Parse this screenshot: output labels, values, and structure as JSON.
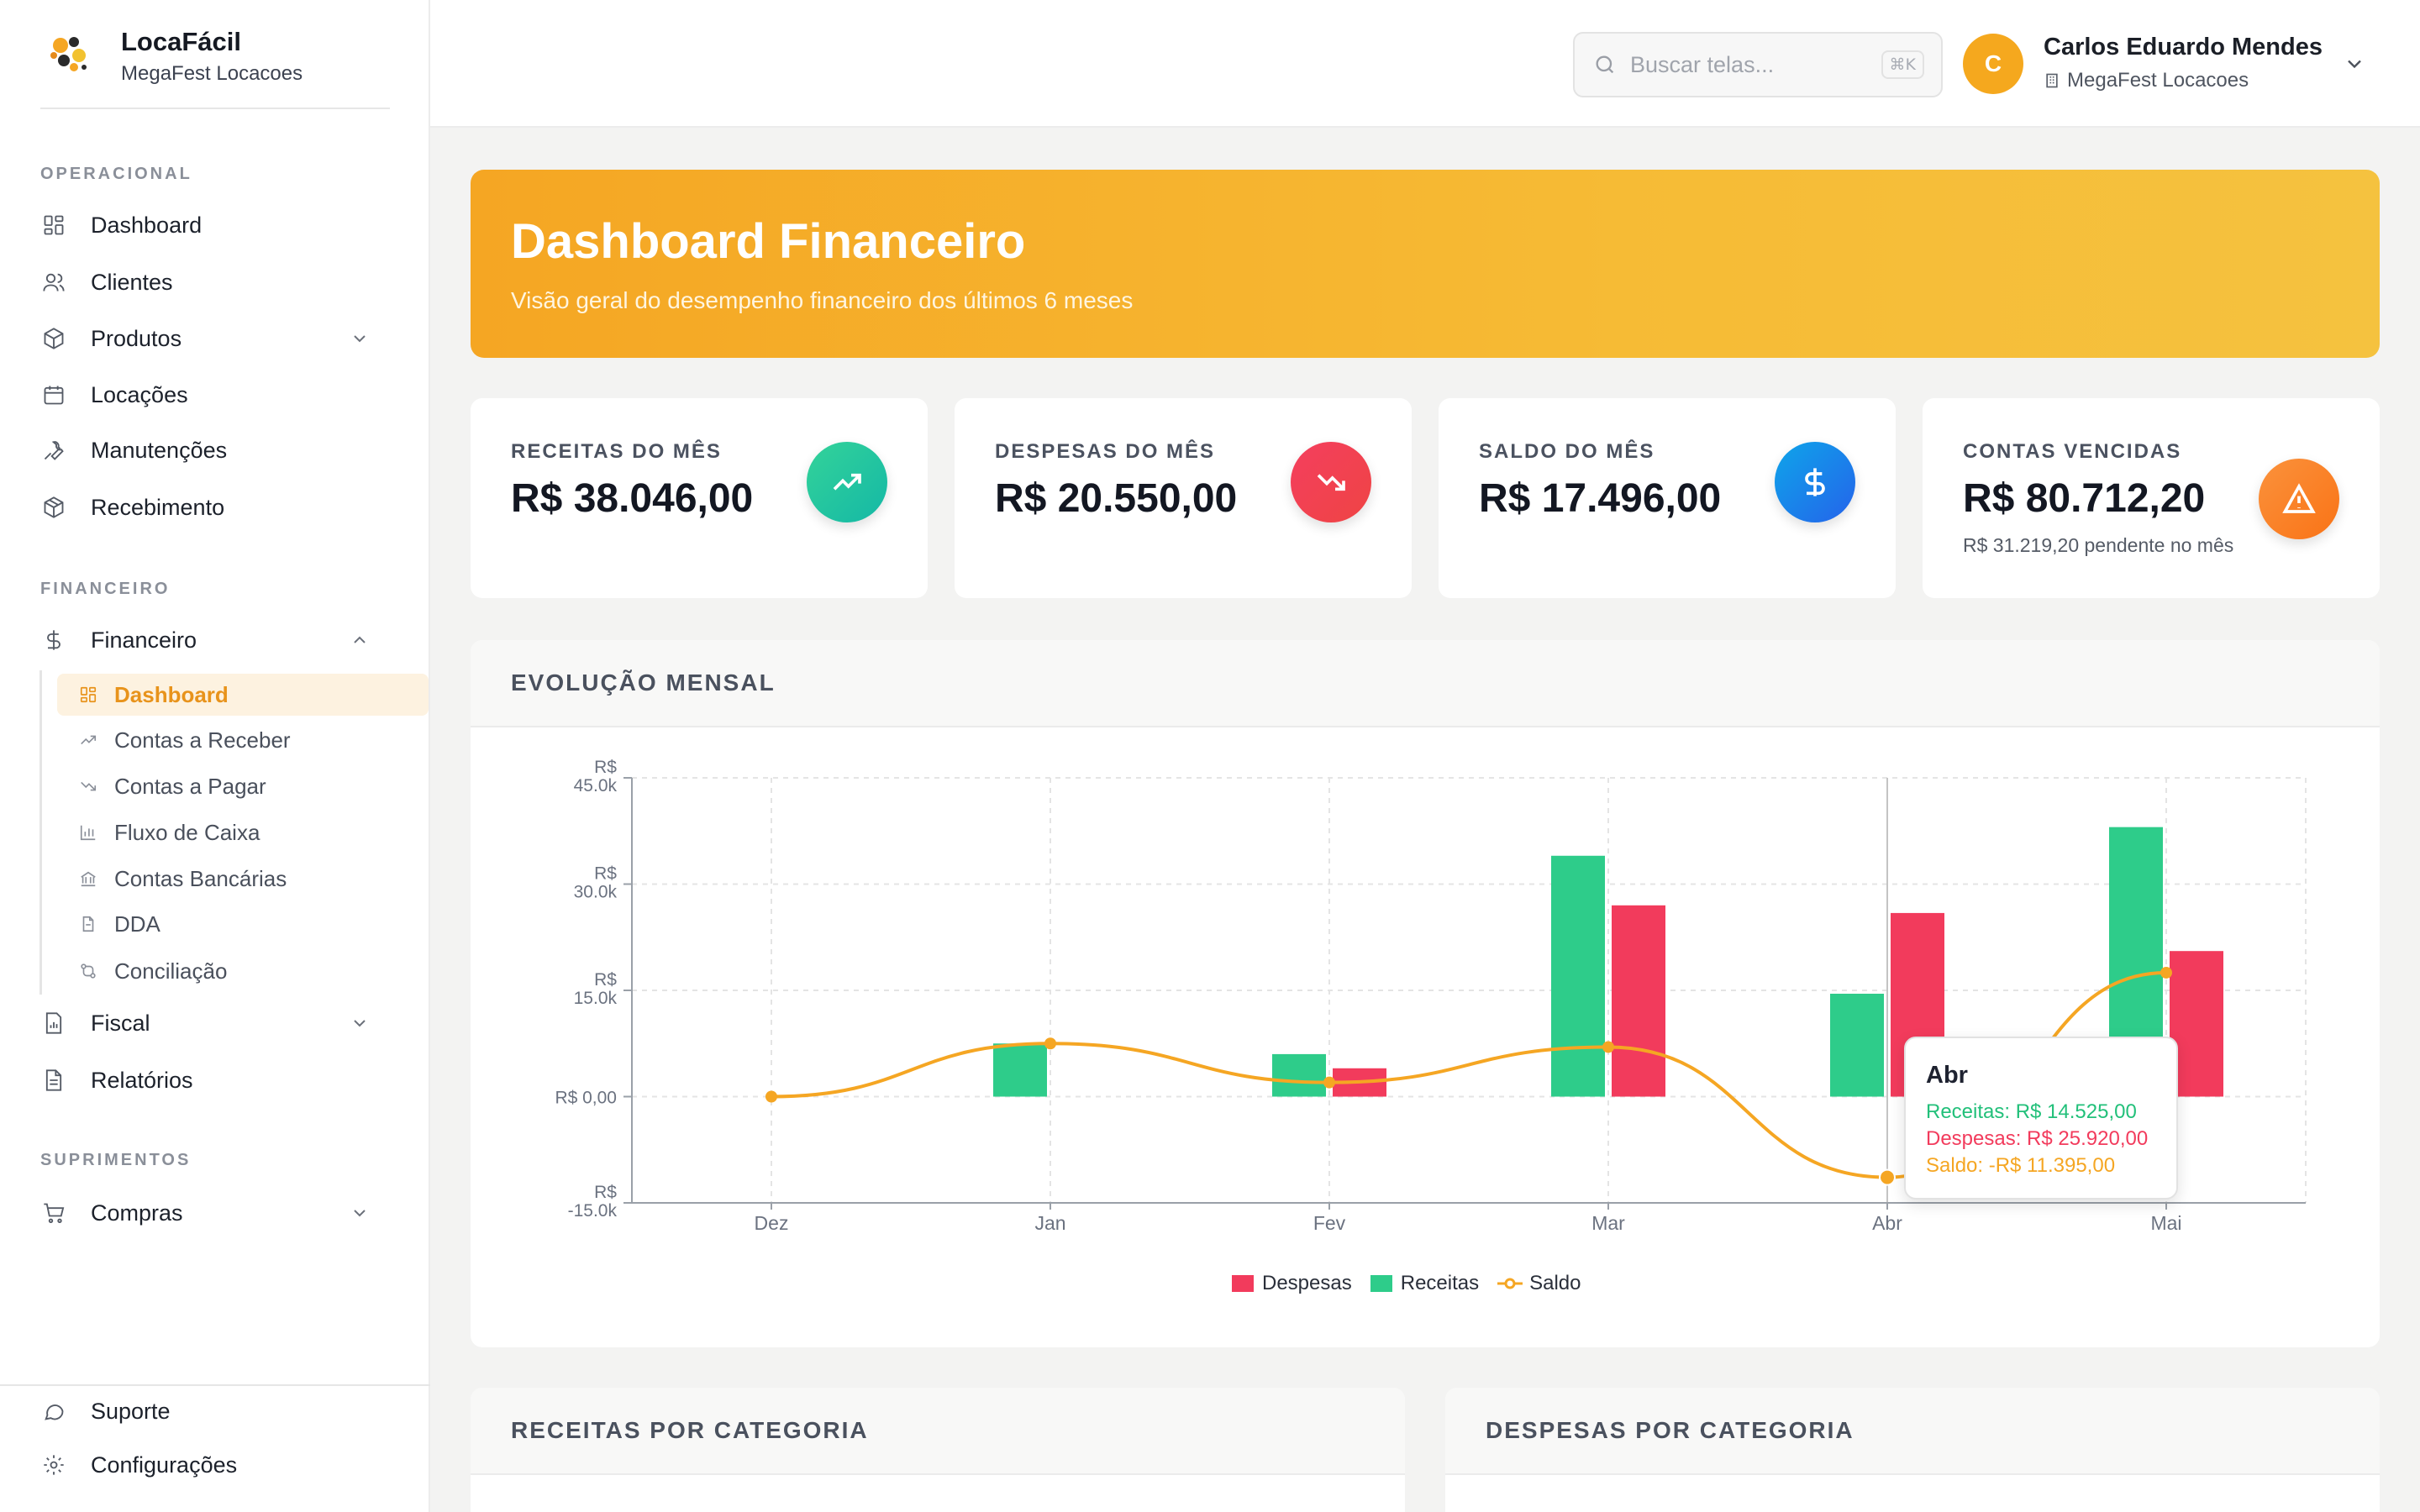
{
  "brand": {
    "name": "LocaFácil",
    "subtitle": "MegaFest Locacoes"
  },
  "sidebar": {
    "sections": {
      "operacional": "OPERACIONAL",
      "financeiro": "FINANCEIRO",
      "suprimentos": "SUPRIMENTOS"
    },
    "operacional": [
      {
        "label": "Dashboard",
        "icon": "grid-icon"
      },
      {
        "label": "Clientes",
        "icon": "users-icon"
      },
      {
        "label": "Produtos",
        "icon": "box-icon"
      },
      {
        "label": "Locações",
        "icon": "calendar-icon"
      },
      {
        "label": "Manutenções",
        "icon": "wrench-icon"
      },
      {
        "label": "Recebimento",
        "icon": "package-icon"
      }
    ],
    "financeiro": {
      "label": "Financeiro",
      "icon": "dollar-icon"
    },
    "financeiro_sub": [
      {
        "label": "Dashboard",
        "icon": "grid-icon"
      },
      {
        "label": "Contas a Receber",
        "icon": "trend-up-icon"
      },
      {
        "label": "Contas a Pagar",
        "icon": "trend-down-icon"
      },
      {
        "label": "Fluxo de Caixa",
        "icon": "bar-chart-icon"
      },
      {
        "label": "Contas Bancárias",
        "icon": "bank-icon"
      },
      {
        "label": "DDA",
        "icon": "file-icon"
      },
      {
        "label": "Conciliação",
        "icon": "git-compare-icon"
      }
    ],
    "fiscal": {
      "label": "Fiscal",
      "icon": "receipt-icon"
    },
    "relatorios": {
      "label": "Relatórios",
      "icon": "document-icon"
    },
    "compras": {
      "label": "Compras",
      "icon": "cart-icon"
    },
    "footer": [
      {
        "label": "Suporte",
        "icon": "message-icon"
      },
      {
        "label": "Configurações",
        "icon": "gear-icon"
      }
    ]
  },
  "header": {
    "search_placeholder": "Buscar telas...",
    "search_shortcut": "⌘K",
    "user_initial": "C",
    "user_name": "Carlos Eduardo Mendes",
    "user_org": "MegaFest Locacoes"
  },
  "banner": {
    "title": "Dashboard Financeiro",
    "subtitle": "Visão geral do desempenho financeiro dos últimos 6 meses"
  },
  "kpis": [
    {
      "label": "RECEITAS DO MÊS",
      "value": "R$ 38.046,00",
      "note": "",
      "color": "#2ecc8f"
    },
    {
      "label": "DESPESAS DO MÊS",
      "value": "R$ 20.550,00",
      "note": "",
      "color": "#f23b5c"
    },
    {
      "label": "SALDO DO MÊS",
      "value": "R$ 17.496,00",
      "note": "",
      "color": "#1597e5"
    },
    {
      "label": "CONTAS VENCIDAS",
      "value": "R$ 80.712,20",
      "note": "R$ 31.219,20 pendente no mês",
      "color": "#f57a2a"
    }
  ],
  "chart_card": {
    "title": "EVOLUÇÃO MENSAL"
  },
  "chart_data": {
    "type": "bar",
    "categories": [
      "Dez",
      "Jan",
      "Fev",
      "Mar",
      "Abr",
      "Mai"
    ],
    "series": [
      {
        "name": "Receitas",
        "type": "bar",
        "color": "#2ecc8a",
        "values": [
          0,
          7500,
          6000,
          34000,
          14525,
          38046
        ]
      },
      {
        "name": "Despesas",
        "type": "bar",
        "color": "#f23b5c",
        "values": [
          0,
          0,
          4000,
          27000,
          25920,
          20550
        ]
      },
      {
        "name": "Saldo",
        "type": "line",
        "color": "#f5a623",
        "values": [
          0,
          7500,
          2000,
          7000,
          -11395,
          17496
        ]
      }
    ],
    "ylim": [
      -15000,
      45000
    ],
    "yticks": [
      {
        "value": 45000,
        "top": "R$",
        "bottom": "45.0k"
      },
      {
        "value": 30000,
        "top": "R$",
        "bottom": "30.0k"
      },
      {
        "value": 15000,
        "top": "R$",
        "bottom": "15.0k"
      },
      {
        "value": 0,
        "top": "",
        "bottom": "R$ 0,00"
      },
      {
        "value": -15000,
        "top": "R$",
        "bottom": "-15.0k"
      }
    ],
    "grid": true,
    "legend": [
      "Despesas",
      "Receitas",
      "Saldo"
    ],
    "tooltip": {
      "title": "Abr",
      "receitas": "Receitas: R$ 14.525,00",
      "despesas": "Despesas: R$ 25.920,00",
      "saldo": "Saldo: -R$ 11.395,00"
    }
  },
  "bottom_cards": [
    {
      "title": "RECEITAS POR CATEGORIA"
    },
    {
      "title": "DESPESAS POR CATEGORIA"
    }
  ]
}
